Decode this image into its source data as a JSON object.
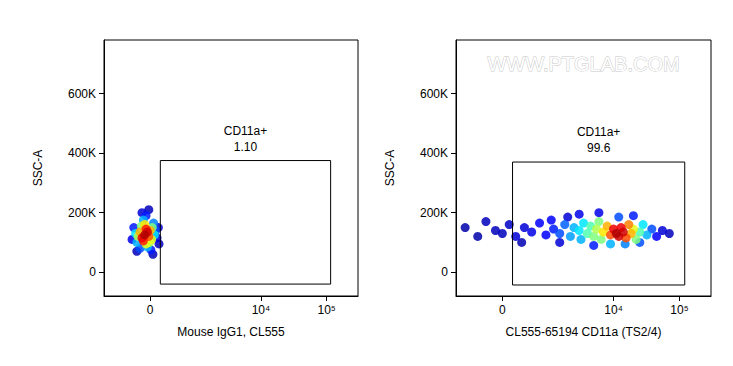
{
  "chart_data": [
    {
      "type": "scatter",
      "x_label": "Mouse IgG1, CL555",
      "y_label": "SSC-A",
      "xlim": [
        -1000,
        300000
      ],
      "ylim": [
        -80000,
        780000
      ],
      "xticks": [
        0,
        {
          "value": 10000,
          "label": "10⁴"
        },
        {
          "value": 100000,
          "label": "10⁵"
        }
      ],
      "yticks": [
        0,
        {
          "value": 200000,
          "label": "200K"
        },
        {
          "value": 400000,
          "label": "400K"
        },
        {
          "value": 600000,
          "label": "600K"
        }
      ],
      "x": [
        -80,
        -40,
        -120,
        -60,
        -100,
        -20,
        -150,
        0,
        -80,
        -60,
        20,
        -180,
        -130,
        30,
        -10,
        -220,
        60,
        -100,
        -40,
        -200,
        50,
        -150,
        80,
        -250,
        -60,
        10,
        100,
        -280,
        -120,
        120,
        -20,
        -200,
        40,
        130
      ],
      "y": [
        125000,
        135000,
        115000,
        145000,
        105000,
        120000,
        135000,
        140000,
        160000,
        95000,
        110000,
        120000,
        155000,
        150000,
        100000,
        130000,
        125000,
        175000,
        85000,
        100000,
        165000,
        80000,
        140000,
        150000,
        190000,
        75000,
        115000,
        110000,
        200000,
        150000,
        210000,
        70000,
        60000,
        95000
      ],
      "density": [
        1,
        0.95,
        0.9,
        0.85,
        0.85,
        0.8,
        0.7,
        0.7,
        0.65,
        0.6,
        0.6,
        0.55,
        0.5,
        0.5,
        0.55,
        0.35,
        0.35,
        0.3,
        0.3,
        0.3,
        0.25,
        0.2,
        0.2,
        0.15,
        0.15,
        0.15,
        0.1,
        0.1,
        0.08,
        0.08,
        0.05,
        0.05,
        0.05,
        0.05
      ],
      "density_range": [
        0,
        1
      ],
      "gate": {
        "name": "CD11a+",
        "xlim": [
          150,
          115000
        ],
        "ylim": [
          -40000,
          375000
        ],
        "value": 1.1,
        "value_label": "1.10"
      }
    },
    {
      "type": "scatter",
      "x_label": "CL555-65194 CD11a (TS2/4)",
      "y_label": "SSC-A",
      "watermark": "WWW.PTGLAB.COM",
      "xlim": [
        -1000,
        300000
      ],
      "ylim": [
        -80000,
        780000
      ],
      "xticks": [
        0,
        {
          "value": 10000,
          "label": "10⁴"
        },
        {
          "value": 100000,
          "label": "10⁵"
        }
      ],
      "yticks": [
        0,
        {
          "value": 200000,
          "label": "200K"
        },
        {
          "value": 400000,
          "label": "400K"
        },
        {
          "value": 600000,
          "label": "600K"
        }
      ],
      "x": [
        -700,
        -400,
        -250,
        -100,
        0,
        100,
        200,
        350,
        500,
        700,
        900,
        1200,
        1100,
        1500,
        1800,
        2200,
        2500,
        3000,
        3500,
        3200,
        4000,
        4500,
        5000,
        5500,
        6000,
        6500,
        7000,
        8000,
        9000,
        10000,
        11000,
        12000,
        13000,
        14000,
        15500,
        17000,
        18500,
        20000,
        22000,
        25000,
        28000,
        32000,
        38000,
        45000,
        55000,
        70000,
        3000,
        6000,
        12000,
        20000,
        9000,
        15000,
        25000,
        5000,
        1500,
        2000,
        300
      ],
      "y": [
        150000,
        120000,
        170000,
        140000,
        130000,
        160000,
        120000,
        150000,
        135000,
        165000,
        125000,
        145000,
        175000,
        130000,
        160000,
        120000,
        150000,
        140000,
        165000,
        110000,
        130000,
        155000,
        120000,
        145000,
        170000,
        110000,
        135000,
        155000,
        125000,
        145000,
        130000,
        120000,
        150000,
        135000,
        115000,
        160000,
        130000,
        145000,
        110000,
        135000,
        160000,
        125000,
        145000,
        120000,
        140000,
        130000,
        195000,
        200000,
        185000,
        190000,
        95000,
        95000,
        100000,
        90000,
        100000,
        185000,
        100000
      ],
      "density": [
        0.03,
        0.03,
        0.05,
        0.05,
        0.05,
        0.06,
        0.08,
        0.08,
        0.1,
        0.12,
        0.12,
        0.15,
        0.12,
        0.2,
        0.22,
        0.28,
        0.3,
        0.35,
        0.35,
        0.3,
        0.45,
        0.45,
        0.5,
        0.55,
        0.5,
        0.5,
        0.65,
        0.7,
        0.8,
        0.9,
        1,
        0.95,
        0.9,
        0.95,
        0.8,
        0.75,
        0.7,
        0.6,
        0.5,
        0.45,
        0.35,
        0.3,
        0.2,
        0.12,
        0.08,
        0.05,
        0.1,
        0.1,
        0.2,
        0.15,
        0.3,
        0.25,
        0.2,
        0.15,
        0.08,
        0.08,
        0.04
      ],
      "density_range": [
        0,
        1
      ],
      "gate": {
        "name": "CD11a+",
        "xlim": [
          150,
          120000
        ],
        "ylim": [
          -43000,
          370000
        ],
        "value": 99.6
      }
    }
  ]
}
